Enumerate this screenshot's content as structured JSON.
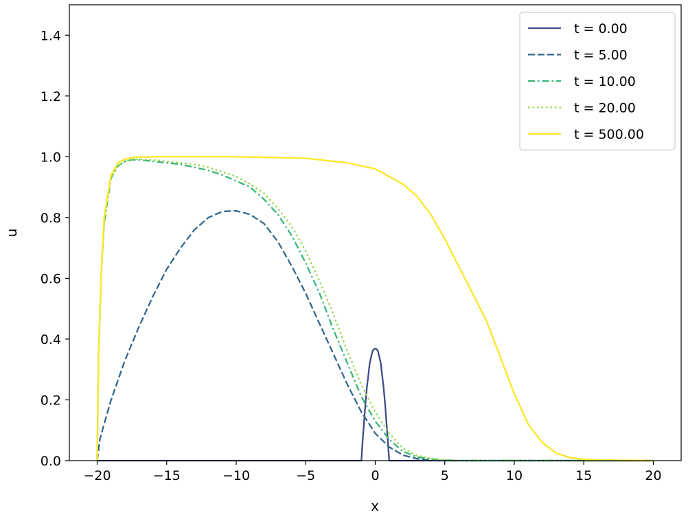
{
  "chart_data": {
    "type": "line",
    "title": "",
    "xlabel": "x",
    "ylabel": "u",
    "xlim": [
      -22,
      22
    ],
    "ylim": [
      0.0,
      1.5
    ],
    "xticks": [
      -20,
      -15,
      -10,
      -5,
      0,
      5,
      10,
      15,
      20
    ],
    "xtick_labels": [
      "−20",
      "−15",
      "−10",
      "−5",
      "0",
      "5",
      "10",
      "15",
      "20"
    ],
    "yticks": [
      0.0,
      0.2,
      0.4,
      0.6,
      0.8,
      1.0,
      1.2,
      1.4
    ],
    "ytick_labels": [
      "0.0",
      "0.2",
      "0.4",
      "0.6",
      "0.8",
      "1.0",
      "1.2",
      "1.4"
    ],
    "grid": false,
    "legend_position": "top-right",
    "series": [
      {
        "name": "t = 0.00",
        "color": "#3e4a89",
        "dash": "solid",
        "x": [
          -20,
          -1,
          -0.9,
          -0.8,
          -0.7,
          -0.6,
          -0.5,
          -0.4,
          -0.3,
          -0.2,
          -0.1,
          0,
          0.1,
          0.2,
          0.3,
          0.4,
          0.5,
          0.6,
          0.7,
          0.8,
          0.9,
          1,
          20
        ],
        "y": [
          0,
          0,
          0.07,
          0.13,
          0.19,
          0.24,
          0.28,
          0.32,
          0.34,
          0.36,
          0.367,
          0.368,
          0.367,
          0.36,
          0.34,
          0.32,
          0.28,
          0.24,
          0.19,
          0.13,
          0.07,
          0,
          0
        ]
      },
      {
        "name": "t = 5.00",
        "color": "#31688e",
        "dash": "dashed",
        "x": [
          -20,
          -19.8,
          -19.5,
          -19,
          -18,
          -17,
          -16,
          -15,
          -14,
          -13,
          -12,
          -11,
          -10,
          -9,
          -8,
          -7,
          -6,
          -5,
          -4,
          -3,
          -2,
          -1,
          0,
          1,
          2,
          3,
          4,
          5,
          20
        ],
        "y": [
          0,
          0.07,
          0.12,
          0.2,
          0.33,
          0.44,
          0.54,
          0.63,
          0.7,
          0.76,
          0.8,
          0.82,
          0.822,
          0.81,
          0.78,
          0.72,
          0.64,
          0.55,
          0.45,
          0.35,
          0.25,
          0.16,
          0.09,
          0.045,
          0.018,
          0.006,
          0.002,
          0,
          0
        ]
      },
      {
        "name": "t = 10.00",
        "color": "#35b779",
        "dash": "dashdot",
        "x": [
          -20,
          -19.9,
          -19.7,
          -19.5,
          -19,
          -18.5,
          -18,
          -17.5,
          -17,
          -16,
          -15,
          -14,
          -13,
          -12,
          -11,
          -10,
          -9,
          -8,
          -7,
          -6,
          -5,
          -4,
          -3,
          -2,
          -1,
          0,
          1,
          2,
          3,
          4,
          5,
          6,
          20
        ],
        "y": [
          0,
          0.35,
          0.62,
          0.78,
          0.93,
          0.97,
          0.985,
          0.99,
          0.99,
          0.985,
          0.98,
          0.975,
          0.965,
          0.955,
          0.94,
          0.92,
          0.9,
          0.86,
          0.81,
          0.74,
          0.65,
          0.55,
          0.43,
          0.32,
          0.21,
          0.13,
          0.07,
          0.03,
          0.012,
          0.005,
          0.002,
          0,
          0
        ]
      },
      {
        "name": "t = 20.00",
        "color": "#90d743",
        "dash": "dotted",
        "x": [
          -20,
          -19.9,
          -19.7,
          -19.5,
          -19,
          -18.5,
          -18,
          -17.5,
          -17,
          -16,
          -15,
          -14,
          -13,
          -12,
          -11,
          -10,
          -9,
          -8,
          -7,
          -6,
          -5,
          -4,
          -3,
          -2,
          -1,
          0,
          1,
          2,
          3,
          4,
          5,
          6,
          20
        ],
        "y": [
          0,
          0.35,
          0.62,
          0.78,
          0.93,
          0.97,
          0.985,
          0.99,
          0.992,
          0.99,
          0.985,
          0.98,
          0.975,
          0.965,
          0.95,
          0.935,
          0.91,
          0.88,
          0.83,
          0.77,
          0.69,
          0.59,
          0.48,
          0.36,
          0.25,
          0.16,
          0.09,
          0.04,
          0.017,
          0.007,
          0.003,
          0,
          0
        ]
      },
      {
        "name": "t = 500.00",
        "color": "#fde725",
        "dash": "solid",
        "x": [
          -20,
          -19.9,
          -19.7,
          -19.5,
          -19,
          -18.5,
          -18,
          -17.5,
          -17,
          -16,
          -14,
          -10,
          -5,
          -2,
          0,
          2,
          3,
          4,
          5,
          6,
          7,
          8,
          9,
          10,
          11,
          12,
          13,
          14,
          15,
          16,
          20
        ],
        "y": [
          0,
          0.35,
          0.62,
          0.8,
          0.94,
          0.98,
          0.992,
          0.997,
          0.999,
          1.0,
          1.0,
          1.0,
          0.995,
          0.98,
          0.96,
          0.91,
          0.87,
          0.81,
          0.73,
          0.64,
          0.55,
          0.46,
          0.34,
          0.22,
          0.12,
          0.06,
          0.025,
          0.01,
          0.004,
          0.002,
          0.0
        ]
      }
    ]
  }
}
